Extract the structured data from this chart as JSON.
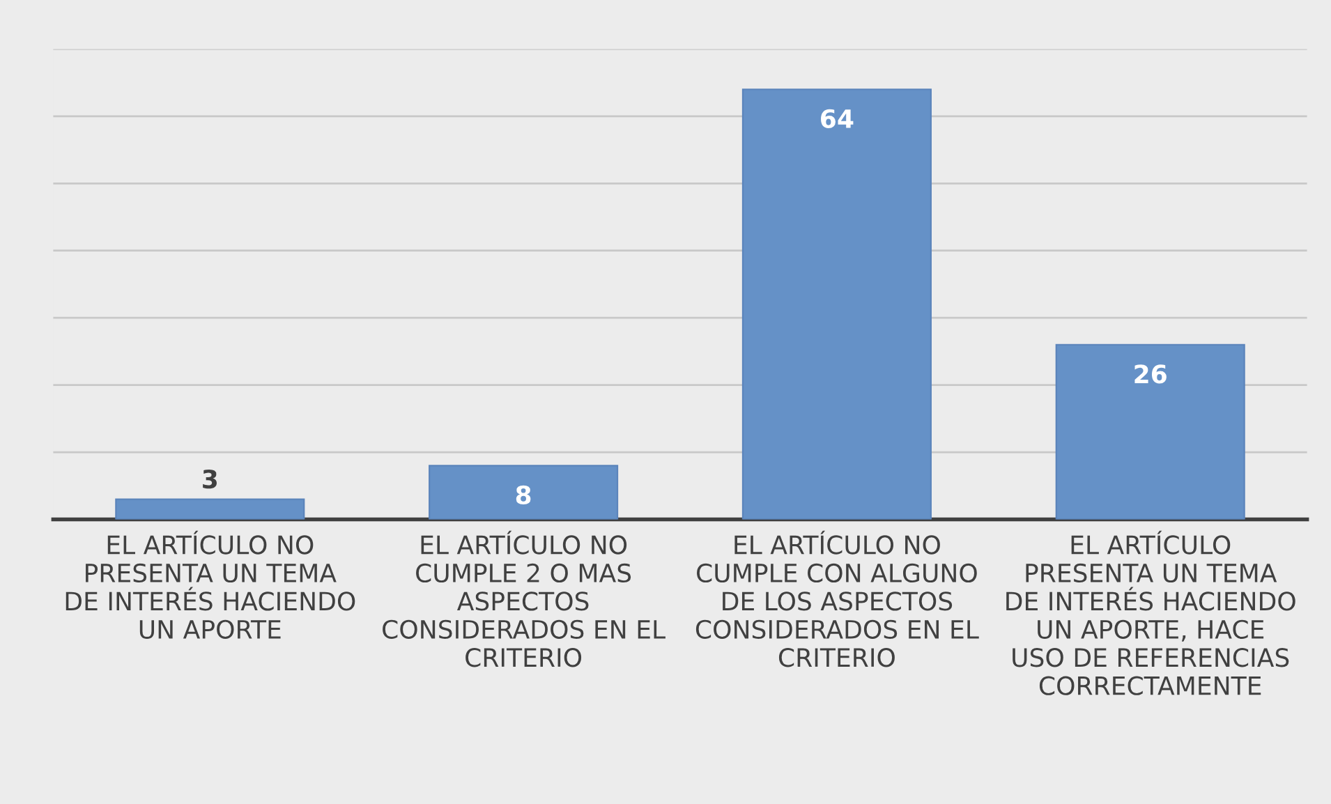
{
  "chart_data": {
    "type": "bar",
    "categories": [
      "EL ARTÍCULO NO\nPRESENTA UN TEMA\nDE INTERÉS HACIENDO\nUN APORTE",
      "EL ARTÍCULO NO\nCUMPLE 2 O MAS\nASPECTOS\nCONSIDERADOS EN EL\nCRITERIO",
      "EL ARTÍCULO NO\nCUMPLE CON ALGUNO\nDE LOS ASPECTOS\nCONSIDERADOS EN EL\nCRITERIO",
      "EL ARTÍCULO\nPRESENTA UN TEMA\nDE INTERÉS HACIENDO\nUN APORTE, HACE\nUSO DE REFERENCIAS\nCORRECTAMENTE"
    ],
    "values": [
      3,
      8,
      64,
      26
    ],
    "color": "#6591c7",
    "data_labels": true,
    "ylim": [
      0,
      70
    ],
    "yticks": [
      {
        "value": 0,
        "label": null
      },
      {
        "value": 10,
        "label": null
      },
      {
        "value": 20,
        "label": null
      },
      {
        "value": 30,
        "label": null
      },
      {
        "value": 40,
        "label": null
      },
      {
        "value": 50,
        "label": null
      },
      {
        "value": 60,
        "label": null
      },
      {
        "value": 70,
        "label": null
      }
    ],
    "tick_labels": "x",
    "grid": "y",
    "legend": false
  }
}
